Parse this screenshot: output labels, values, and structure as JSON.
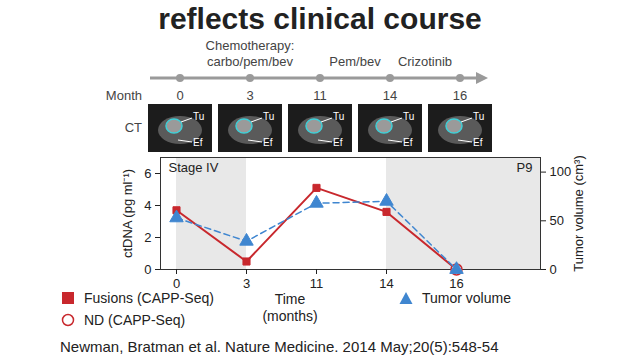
{
  "title": "reflects clinical course",
  "timeline": {
    "label": "Month",
    "months": [
      0,
      3,
      11,
      14,
      16
    ],
    "phases": [
      {
        "lines": [
          "Chemotherapy:",
          "carbo/pem/bev"
        ],
        "start": 0,
        "end": 11
      },
      {
        "lines": [
          "Pem/bev"
        ],
        "start": 11,
        "end": 14
      },
      {
        "lines": [
          "Crizotinib"
        ],
        "start": 14,
        "end": 16
      }
    ]
  },
  "ct": {
    "label": "CT",
    "annotations": [
      "Tu",
      "Ef"
    ]
  },
  "chart_data": {
    "type": "line",
    "categories": [
      "0",
      "3",
      "11",
      "14",
      "16"
    ],
    "xlabel": "Time (months)",
    "ylabel": "ctDNA (pg ml⁻¹)",
    "y2label": "Tumor volume (cm³)",
    "ylim": [
      0,
      7
    ],
    "yticks": [
      0,
      2,
      4,
      6
    ],
    "y2lim": [
      0,
      115
    ],
    "y2ticks": [
      0,
      50,
      100
    ],
    "annotations": [
      "Stage IV",
      "P9"
    ],
    "legend": "bottom",
    "series": [
      {
        "name": "Fusions (CAPP-Seq)",
        "color": "#c8282d",
        "marker": "square",
        "values": [
          3.7,
          0.5,
          5.1,
          3.6,
          0
        ]
      },
      {
        "name": "ND (CAPP-Seq)",
        "color": "#c8282d",
        "marker": "circle_open",
        "type": "scatter",
        "values": [
          null,
          null,
          null,
          null,
          0
        ]
      },
      {
        "name": "Tumor volume",
        "color": "#3f86d0",
        "marker": "triangle",
        "line_style": "dashed",
        "axis": "y2",
        "values": [
          53,
          29,
          68,
          70,
          0
        ]
      }
    ]
  },
  "citation": "Newman, Bratman et al. Nature Medicine. 2014 May;20(5):548-54"
}
